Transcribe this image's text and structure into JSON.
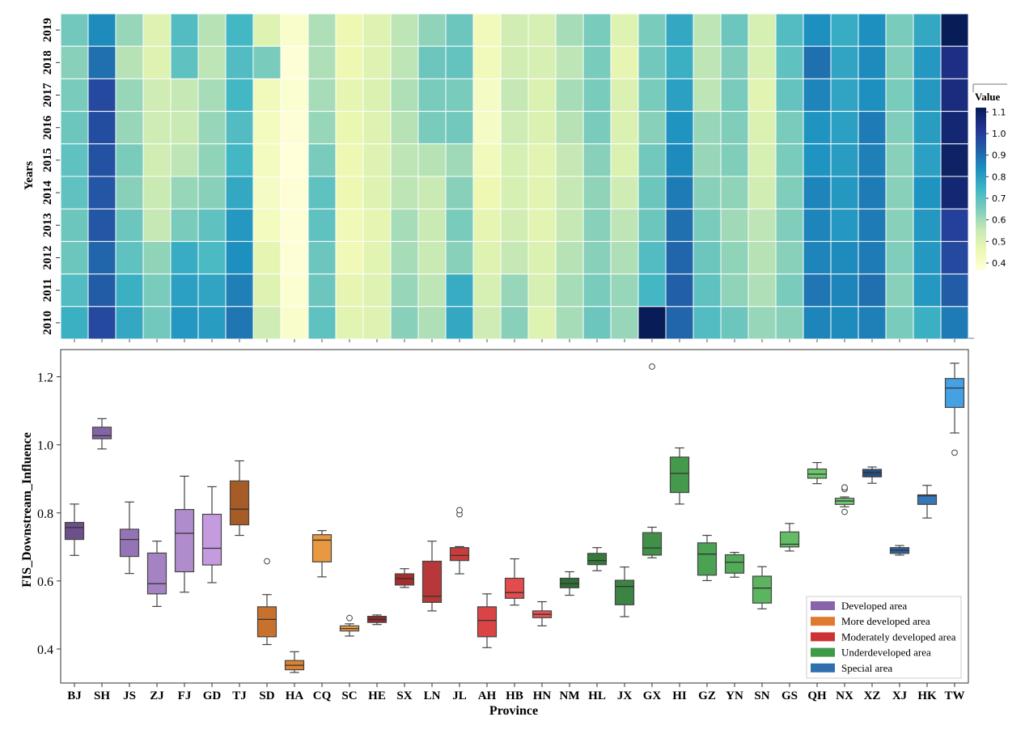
{
  "chart_data": [
    {
      "type": "heatmap",
      "title": "",
      "xlabel": "",
      "ylabel": "Years",
      "categories": [
        "BJ",
        "SH",
        "JS",
        "ZJ",
        "FJ",
        "GD",
        "TJ",
        "SD",
        "HA",
        "CQ",
        "SC",
        "HE",
        "SX",
        "LN",
        "JL",
        "AH",
        "HB",
        "HN",
        "NM",
        "HL",
        "JX",
        "GX",
        "HI",
        "GZ",
        "YN",
        "SN",
        "GS",
        "QH",
        "NX",
        "XZ",
        "XJ",
        "HK",
        "TW"
      ],
      "years": [
        "2019",
        "2018",
        "2017",
        "2016",
        "2015",
        "2014",
        "2013",
        "2012",
        "2011",
        "2010"
      ],
      "values": [
        [
          0.67,
          0.85,
          0.62,
          0.5,
          0.72,
          0.58,
          0.74,
          0.5,
          0.4,
          0.59,
          0.46,
          0.5,
          0.57,
          0.63,
          0.68,
          0.44,
          0.53,
          0.52,
          0.6,
          0.66,
          0.5,
          0.66,
          0.78,
          0.57,
          0.68,
          0.52,
          0.72,
          0.84,
          0.77,
          0.84,
          0.66,
          0.78,
          1.12
        ],
        [
          0.64,
          0.9,
          0.58,
          0.5,
          0.7,
          0.57,
          0.72,
          0.66,
          0.38,
          0.59,
          0.46,
          0.5,
          0.57,
          0.68,
          0.69,
          0.44,
          0.53,
          0.52,
          0.57,
          0.66,
          0.48,
          0.67,
          0.76,
          0.57,
          0.65,
          0.52,
          0.7,
          0.9,
          0.79,
          0.85,
          0.65,
          0.82,
          1.05
        ],
        [
          0.66,
          0.98,
          0.62,
          0.54,
          0.56,
          0.6,
          0.74,
          0.44,
          0.39,
          0.6,
          0.48,
          0.51,
          0.59,
          0.66,
          0.66,
          0.42,
          0.56,
          0.51,
          0.6,
          0.66,
          0.51,
          0.66,
          0.8,
          0.57,
          0.66,
          0.49,
          0.69,
          0.86,
          0.79,
          0.84,
          0.66,
          0.82,
          1.06
        ],
        [
          0.68,
          0.97,
          0.62,
          0.54,
          0.55,
          0.62,
          0.72,
          0.43,
          0.38,
          0.62,
          0.47,
          0.5,
          0.58,
          0.66,
          0.67,
          0.42,
          0.54,
          0.51,
          0.58,
          0.66,
          0.51,
          0.64,
          0.83,
          0.62,
          0.65,
          0.51,
          0.66,
          0.83,
          0.8,
          0.88,
          0.65,
          0.81,
          1.08
        ],
        [
          0.7,
          0.96,
          0.66,
          0.53,
          0.57,
          0.63,
          0.74,
          0.43,
          0.37,
          0.66,
          0.46,
          0.5,
          0.57,
          0.58,
          0.61,
          0.44,
          0.52,
          0.49,
          0.56,
          0.64,
          0.51,
          0.67,
          0.85,
          0.62,
          0.65,
          0.52,
          0.66,
          0.83,
          0.81,
          0.87,
          0.64,
          0.8,
          1.1
        ],
        [
          0.7,
          0.95,
          0.64,
          0.55,
          0.62,
          0.64,
          0.78,
          0.42,
          0.38,
          0.7,
          0.46,
          0.5,
          0.57,
          0.55,
          0.64,
          0.46,
          0.52,
          0.49,
          0.56,
          0.63,
          0.54,
          0.68,
          0.88,
          0.64,
          0.63,
          0.53,
          0.65,
          0.86,
          0.82,
          0.88,
          0.64,
          0.83,
          1.08
        ],
        [
          0.68,
          0.95,
          0.68,
          0.56,
          0.66,
          0.7,
          0.82,
          0.43,
          0.38,
          0.7,
          0.45,
          0.48,
          0.6,
          0.55,
          0.66,
          0.48,
          0.53,
          0.49,
          0.56,
          0.64,
          0.57,
          0.68,
          0.9,
          0.66,
          0.61,
          0.57,
          0.65,
          0.86,
          0.82,
          0.88,
          0.64,
          0.82,
          1.0
        ],
        [
          0.68,
          0.92,
          0.7,
          0.63,
          0.77,
          0.73,
          0.84,
          0.48,
          0.38,
          0.68,
          0.45,
          0.49,
          0.6,
          0.55,
          0.64,
          0.5,
          0.56,
          0.51,
          0.58,
          0.64,
          0.59,
          0.72,
          0.92,
          0.68,
          0.63,
          0.58,
          0.64,
          0.86,
          0.85,
          0.88,
          0.65,
          0.82,
          0.98
        ],
        [
          0.72,
          0.94,
          0.76,
          0.66,
          0.8,
          0.79,
          0.87,
          0.5,
          0.39,
          0.68,
          0.48,
          0.5,
          0.62,
          0.57,
          0.77,
          0.52,
          0.62,
          0.52,
          0.6,
          0.66,
          0.62,
          0.74,
          0.93,
          0.7,
          0.63,
          0.59,
          0.66,
          0.89,
          0.86,
          0.9,
          0.64,
          0.82,
          0.94
        ],
        [
          0.76,
          0.98,
          0.78,
          0.67,
          0.82,
          0.81,
          0.89,
          0.54,
          0.4,
          0.7,
          0.49,
          0.5,
          0.64,
          0.59,
          0.78,
          0.54,
          0.64,
          0.5,
          0.6,
          0.68,
          0.62,
          1.23,
          0.92,
          0.72,
          0.68,
          0.62,
          0.64,
          0.86,
          0.85,
          0.87,
          0.66,
          0.76,
          0.88
        ]
      ],
      "colorbar_label": "Value",
      "colorbar_ticks": [
        "1.1",
        "1.0",
        "0.9",
        "0.8",
        "0.7",
        "0.6",
        "0.5",
        "0.4"
      ],
      "colorbar_range": [
        0.37,
        1.12
      ],
      "colormap": "YlGnBu"
    },
    {
      "type": "box",
      "title": "",
      "xlabel": "Province",
      "ylabel": "FIS_Downstream_Influence",
      "ylim": [
        0.3,
        1.28
      ],
      "yticks": [
        "0.4",
        "0.6",
        "0.8",
        "1.0",
        "1.2"
      ],
      "grid": false,
      "legend_position": "bottom-right",
      "legend": [
        {
          "label": "Developed area",
          "color": "#8864aa"
        },
        {
          "label": "More developed area",
          "color": "#e07a2e"
        },
        {
          "label": "Moderately developed area",
          "color": "#cc3333"
        },
        {
          "label": "Underdeveloped area",
          "color": "#3e9a47"
        },
        {
          "label": "Special area",
          "color": "#2f6fb0"
        }
      ],
      "boxes": [
        {
          "province": "BJ",
          "group": "Developed area",
          "color": "#6d4f8a",
          "whislo": 0.675,
          "q1": 0.722,
          "med": 0.757,
          "q3": 0.772,
          "whishi": 0.826,
          "fliers": []
        },
        {
          "province": "SH",
          "group": "Developed area",
          "color": "#8365a6",
          "whislo": 0.988,
          "q1": 1.018,
          "med": 1.027,
          "q3": 1.052,
          "whishi": 1.077,
          "fliers": []
        },
        {
          "province": "JS",
          "group": "Developed area",
          "color": "#9574b6",
          "whislo": 0.622,
          "q1": 0.672,
          "med": 0.722,
          "q3": 0.752,
          "whishi": 0.832,
          "fliers": []
        },
        {
          "province": "ZJ",
          "group": "Developed area",
          "color": "#a582c2",
          "whislo": 0.525,
          "q1": 0.562,
          "med": 0.592,
          "q3": 0.682,
          "whishi": 0.717,
          "fliers": []
        },
        {
          "province": "FJ",
          "group": "Developed area",
          "color": "#b08ccc",
          "whislo": 0.567,
          "q1": 0.627,
          "med": 0.74,
          "q3": 0.81,
          "whishi": 0.908,
          "fliers": []
        },
        {
          "province": "GD",
          "group": "Developed area",
          "color": "#c59be0",
          "whislo": 0.595,
          "q1": 0.647,
          "med": 0.696,
          "q3": 0.796,
          "whishi": 0.877,
          "fliers": []
        },
        {
          "province": "TJ",
          "group": "More developed area",
          "color": "#a65c26",
          "whislo": 0.734,
          "q1": 0.765,
          "med": 0.811,
          "q3": 0.894,
          "whishi": 0.953,
          "fliers": []
        },
        {
          "province": "SD",
          "group": "More developed area",
          "color": "#c8712d",
          "whislo": 0.413,
          "q1": 0.436,
          "med": 0.487,
          "q3": 0.524,
          "whishi": 0.56,
          "fliers": [
            0.658
          ]
        },
        {
          "province": "HA",
          "group": "More developed area",
          "color": "#dd8130",
          "whislo": 0.331,
          "q1": 0.339,
          "med": 0.352,
          "q3": 0.366,
          "whishi": 0.392,
          "fliers": []
        },
        {
          "province": "CQ",
          "group": "More developed area",
          "color": "#e89840",
          "whislo": 0.612,
          "q1": 0.656,
          "med": 0.72,
          "q3": 0.736,
          "whishi": 0.748,
          "fliers": []
        },
        {
          "province": "SC",
          "group": "More developed area",
          "color": "#ec9f45",
          "whislo": 0.438,
          "q1": 0.453,
          "med": 0.46,
          "q3": 0.468,
          "whishi": 0.474,
          "fliers": [
            0.491
          ]
        },
        {
          "province": "HE",
          "group": "Moderately developed area",
          "color": "#8e2a2a",
          "whislo": 0.472,
          "q1": 0.478,
          "med": 0.487,
          "q3": 0.496,
          "whishi": 0.5,
          "fliers": []
        },
        {
          "province": "SX",
          "group": "Moderately developed area",
          "color": "#a82e2e",
          "whislo": 0.581,
          "q1": 0.588,
          "med": 0.607,
          "q3": 0.621,
          "whishi": 0.636,
          "fliers": []
        },
        {
          "province": "LN",
          "group": "Moderately developed area",
          "color": "#b73838",
          "whislo": 0.512,
          "q1": 0.537,
          "med": 0.555,
          "q3": 0.658,
          "whishi": 0.717,
          "fliers": []
        },
        {
          "province": "JL",
          "group": "Moderately developed area",
          "color": "#c93c3c",
          "whislo": 0.621,
          "q1": 0.66,
          "med": 0.675,
          "q3": 0.698,
          "whishi": 0.701,
          "fliers": [
            0.796,
            0.808
          ]
        },
        {
          "province": "AH",
          "group": "Moderately developed area",
          "color": "#d94444",
          "whislo": 0.404,
          "q1": 0.436,
          "med": 0.484,
          "q3": 0.524,
          "whishi": 0.562,
          "fliers": []
        },
        {
          "province": "HB",
          "group": "Moderately developed area",
          "color": "#e34c4c",
          "whislo": 0.529,
          "q1": 0.549,
          "med": 0.566,
          "q3": 0.608,
          "whishi": 0.665,
          "fliers": []
        },
        {
          "province": "HN",
          "group": "Moderately developed area",
          "color": "#e85252",
          "whislo": 0.468,
          "q1": 0.492,
          "med": 0.502,
          "q3": 0.512,
          "whishi": 0.539,
          "fliers": []
        },
        {
          "province": "NM",
          "group": "Underdeveloped area",
          "color": "#2f6e35",
          "whislo": 0.558,
          "q1": 0.58,
          "med": 0.592,
          "q3": 0.608,
          "whishi": 0.627,
          "fliers": []
        },
        {
          "province": "HL",
          "group": "Underdeveloped area",
          "color": "#35793b",
          "whislo": 0.63,
          "q1": 0.648,
          "med": 0.66,
          "q3": 0.681,
          "whishi": 0.698,
          "fliers": []
        },
        {
          "province": "JX",
          "group": "Underdeveloped area",
          "color": "#3b8441",
          "whislo": 0.495,
          "q1": 0.53,
          "med": 0.584,
          "q3": 0.602,
          "whishi": 0.641,
          "fliers": []
        },
        {
          "province": "GX",
          "group": "Underdeveloped area",
          "color": "#409048",
          "whislo": 0.668,
          "q1": 0.676,
          "med": 0.697,
          "q3": 0.742,
          "whishi": 0.758,
          "fliers": [
            1.23
          ]
        },
        {
          "province": "HI",
          "group": "Underdeveloped area",
          "color": "#44994c",
          "whislo": 0.826,
          "q1": 0.86,
          "med": 0.916,
          "q3": 0.964,
          "whishi": 0.991,
          "fliers": []
        },
        {
          "province": "GZ",
          "group": "Underdeveloped area",
          "color": "#4aa252",
          "whislo": 0.601,
          "q1": 0.617,
          "med": 0.679,
          "q3": 0.712,
          "whishi": 0.734,
          "fliers": []
        },
        {
          "province": "YN",
          "group": "Underdeveloped area",
          "color": "#52ab58",
          "whislo": 0.611,
          "q1": 0.623,
          "med": 0.655,
          "q3": 0.677,
          "whishi": 0.684,
          "fliers": []
        },
        {
          "province": "SN",
          "group": "Underdeveloped area",
          "color": "#5bb460",
          "whislo": 0.518,
          "q1": 0.535,
          "med": 0.579,
          "q3": 0.614,
          "whishi": 0.642,
          "fliers": []
        },
        {
          "province": "GS",
          "group": "Underdeveloped area",
          "color": "#63bd66",
          "whislo": 0.688,
          "q1": 0.7,
          "med": 0.708,
          "q3": 0.744,
          "whishi": 0.769,
          "fliers": []
        },
        {
          "province": "QH",
          "group": "Underdeveloped area",
          "color": "#6cc76c",
          "whislo": 0.886,
          "q1": 0.902,
          "med": 0.914,
          "q3": 0.929,
          "whishi": 0.948,
          "fliers": []
        },
        {
          "province": "NX",
          "group": "Underdeveloped area",
          "color": "#72cc72",
          "whislo": 0.818,
          "q1": 0.825,
          "med": 0.835,
          "q3": 0.843,
          "whishi": 0.847,
          "fliers": [
            0.803,
            0.87,
            0.875
          ]
        },
        {
          "province": "XZ",
          "group": "Special area",
          "color": "#234f82",
          "whislo": 0.887,
          "q1": 0.906,
          "med": 0.918,
          "q3": 0.928,
          "whishi": 0.935,
          "fliers": []
        },
        {
          "province": "XJ",
          "group": "Special area",
          "color": "#2a64a2",
          "whislo": 0.676,
          "q1": 0.681,
          "med": 0.69,
          "q3": 0.698,
          "whishi": 0.704,
          "fliers": []
        },
        {
          "province": "HK",
          "group": "Special area",
          "color": "#3578b8",
          "whislo": 0.785,
          "q1": 0.825,
          "med": 0.85,
          "q3": 0.853,
          "whishi": 0.881,
          "fliers": []
        },
        {
          "province": "TW",
          "group": "Special area",
          "color": "#45a0e4",
          "whislo": 1.035,
          "q1": 1.11,
          "med": 1.167,
          "q3": 1.195,
          "whishi": 1.24,
          "fliers": [
            0.977
          ]
        }
      ]
    }
  ]
}
